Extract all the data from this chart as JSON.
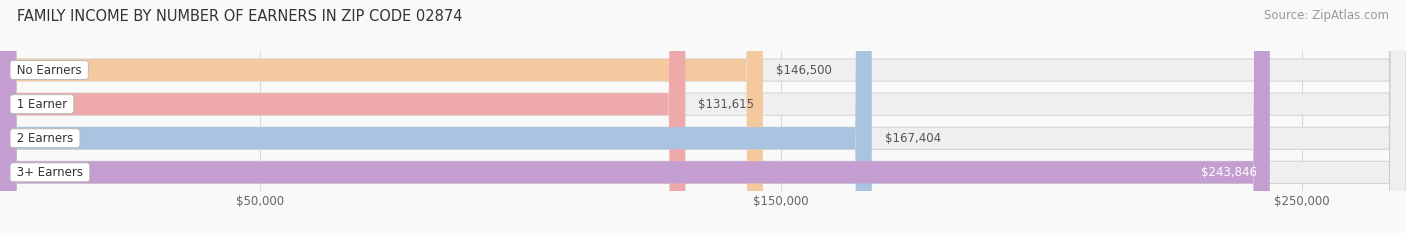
{
  "title": "FAMILY INCOME BY NUMBER OF EARNERS IN ZIP CODE 02874",
  "source": "Source: ZipAtlas.com",
  "categories": [
    "No Earners",
    "1 Earner",
    "2 Earners",
    "3+ Earners"
  ],
  "values": [
    146500,
    131615,
    167404,
    243846
  ],
  "labels": [
    "$146,500",
    "$131,615",
    "$167,404",
    "$243,846"
  ],
  "bar_colors": [
    "#f5c9a0",
    "#eeaaaa",
    "#a8c4e0",
    "#c49ed0"
  ],
  "bar_bg_color": "#efefef",
  "label_text_colors": [
    "#666666",
    "#666666",
    "#666666",
    "#ffffff"
  ],
  "xmin": 0,
  "xmax": 270000,
  "xticks": [
    50000,
    150000,
    250000
  ],
  "xtick_labels": [
    "$50,000",
    "$150,000",
    "$250,000"
  ],
  "title_fontsize": 10.5,
  "source_fontsize": 8.5,
  "bar_label_fontsize": 8.5,
  "category_fontsize": 8.5,
  "tick_fontsize": 8.5,
  "figwidth": 14.06,
  "figheight": 2.33,
  "bar_height": 0.65,
  "bg_color": "#f9f9f9",
  "grid_color": "#d8d8d8"
}
